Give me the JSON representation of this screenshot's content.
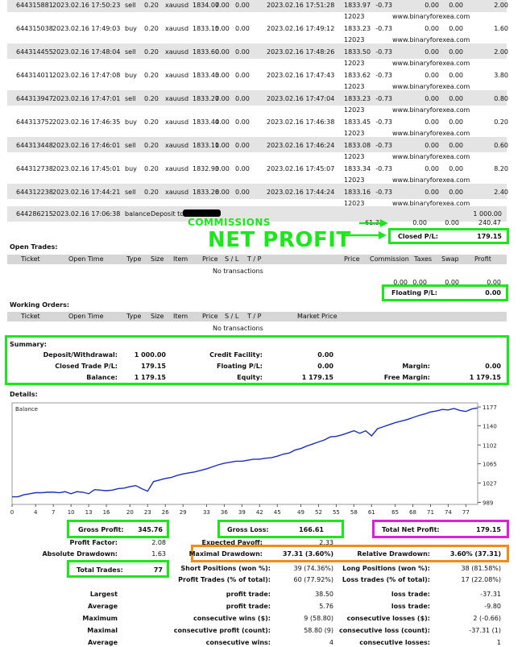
{
  "trades": [
    {
      "ticket": "644315881",
      "open_time": "2023.02.16 17:50:23",
      "type": "sell",
      "size": "0.20",
      "item": "xauusd",
      "price": "1834.07",
      "sl": "0.00",
      "tp": "0.00",
      "close_time": "2023.02.16 17:51:28",
      "close_price": "1833.97",
      "close_price2": "12023",
      "commission": "-0.73",
      "taxes": "0.00",
      "swap": "0.00",
      "profit": "2.00",
      "site": "www.binaryforexea.com"
    },
    {
      "ticket": "644315038",
      "open_time": "2023.02.16 17:49:03",
      "type": "buy",
      "size": "0.20",
      "item": "xauusd",
      "price": "1833.15",
      "sl": "0.00",
      "tp": "0.00",
      "close_time": "2023.02.16 17:49:12",
      "close_price": "1833.23",
      "close_price2": "12023",
      "commission": "-0.73",
      "taxes": "0.00",
      "swap": "0.00",
      "profit": "1.60",
      "site": "www.binaryforexea.com"
    },
    {
      "ticket": "644314455",
      "open_time": "2023.02.16 17:48:04",
      "type": "sell",
      "size": "0.20",
      "item": "xauusd",
      "price": "1833.60",
      "sl": "0.00",
      "tp": "0.00",
      "close_time": "2023.02.16 17:48:26",
      "close_price": "1833.50",
      "close_price2": "12023",
      "commission": "-0.73",
      "taxes": "0.00",
      "swap": "0.00",
      "profit": "2.00",
      "site": "www.binaryforexea.com"
    },
    {
      "ticket": "644314011",
      "open_time": "2023.02.16 17:47:08",
      "type": "buy",
      "size": "0.20",
      "item": "xauusd",
      "price": "1833.43",
      "sl": "0.00",
      "tp": "0.00",
      "close_time": "2023.02.16 17:47:43",
      "close_price": "1833.62",
      "close_price2": "12023",
      "commission": "-0.73",
      "taxes": "0.00",
      "swap": "0.00",
      "profit": "3.80",
      "site": "www.binaryforexea.com"
    },
    {
      "ticket": "644313947",
      "open_time": "2023.02.16 17:47:01",
      "type": "sell",
      "size": "0.20",
      "item": "xauusd",
      "price": "1833.27",
      "sl": "0.00",
      "tp": "0.00",
      "close_time": "2023.02.16 17:47:04",
      "close_price": "1833.23",
      "close_price2": "12023",
      "commission": "-0.73",
      "taxes": "0.00",
      "swap": "0.00",
      "profit": "0.80",
      "site": "www.binaryforexea.com"
    },
    {
      "ticket": "644313752",
      "open_time": "2023.02.16 17:46:35",
      "type": "buy",
      "size": "0.20",
      "item": "xauusd",
      "price": "1833.44",
      "sl": "0.00",
      "tp": "0.00",
      "close_time": "2023.02.16 17:46:38",
      "close_price": "1833.45",
      "close_price2": "12023",
      "commission": "-0.73",
      "taxes": "0.00",
      "swap": "0.00",
      "profit": "0.20",
      "site": "www.binaryforexea.com"
    },
    {
      "ticket": "644313448",
      "open_time": "2023.02.16 17:46:01",
      "type": "sell",
      "size": "0.20",
      "item": "xauusd",
      "price": "1833.11",
      "sl": "0.00",
      "tp": "0.00",
      "close_time": "2023.02.16 17:46:24",
      "close_price": "1833.08",
      "close_price2": "12023",
      "commission": "-0.73",
      "taxes": "0.00",
      "swap": "0.00",
      "profit": "0.60",
      "site": "www.binaryforexea.com"
    },
    {
      "ticket": "644312738",
      "open_time": "2023.02.16 17:45:01",
      "type": "buy",
      "size": "0.20",
      "item": "xauusd",
      "price": "1832.93",
      "sl": "0.00",
      "tp": "0.00",
      "close_time": "2023.02.16 17:45:07",
      "close_price": "1833.34",
      "close_price2": "12023",
      "commission": "-0.73",
      "taxes": "0.00",
      "swap": "0.00",
      "profit": "8.20",
      "site": "www.binaryforexea.com"
    },
    {
      "ticket": "644312238",
      "open_time": "2023.02.16 17:44:21",
      "type": "sell",
      "size": "0.20",
      "item": "xauusd",
      "price": "1833.28",
      "sl": "0.00",
      "tp": "0.00",
      "close_time": "2023.02.16 17:44:24",
      "close_price": "1833.16",
      "close_price2": "12023",
      "commission": "-0.73",
      "taxes": "0.00",
      "swap": "0.00",
      "profit": "2.40",
      "site": "www.binaryforexea.com"
    }
  ],
  "deposit_row": {
    "ticket": "644286215",
    "time": "2023.02.16 17:06:38",
    "type": "balance",
    "text": "Deposit to",
    "amount": "1 000.00"
  },
  "totals": {
    "commission": "-61.32",
    "taxes": "0.00",
    "swap": "0.00",
    "profit": "240.47"
  },
  "annotations": {
    "commissions": "COMMISSIONS",
    "net_profit": "NET PROFIT",
    "arrow_color": "#1be81b"
  },
  "closed_pl": {
    "label": "Closed P/L:",
    "value": "179.15"
  },
  "open_trades": {
    "title": "Open Trades:",
    "headers": [
      "Ticket",
      "Open Time",
      "Type",
      "Size",
      "Item",
      "Price",
      "S / L",
      "T / P",
      "Price",
      "Commission",
      "Taxes",
      "Swap",
      "Profit"
    ],
    "empty": "No transactions",
    "totals": [
      "0.00",
      "0.00",
      "0.00",
      "0.00"
    ],
    "floating_label": "Floating P/L:",
    "floating_value": "0.00"
  },
  "working_orders": {
    "title": "Working Orders:",
    "headers": [
      "Ticket",
      "Open Time",
      "Type",
      "Size",
      "Item",
      "Price",
      "S / L",
      "T / P",
      "Market Price"
    ],
    "empty": "No transactions"
  },
  "summary": {
    "title": "Summary:",
    "deposit_label": "Deposit/Withdrawal:",
    "deposit_value": "1 000.00",
    "credit_label": "Credit Facility:",
    "credit_value": "0.00",
    "closed_label": "Closed Trade P/L:",
    "closed_value": "179.15",
    "floating_label": "Floating P/L:",
    "floating_value": "0.00",
    "margin_label": "Margin:",
    "margin_value": "0.00",
    "balance_label": "Balance:",
    "balance_value": "1 179.15",
    "equity_label": "Equity:",
    "equity_value": "1 179.15",
    "free_margin_label": "Free Margin:",
    "free_margin_value": "1 179.15"
  },
  "details": {
    "title": "Details:"
  },
  "chart_data": {
    "type": "line",
    "title": "Balance",
    "x_ticks": [
      "0",
      "4",
      "7",
      "10",
      "13",
      "16",
      "20",
      "23",
      "26",
      "29",
      "33",
      "36",
      "39",
      "42",
      "45",
      "49",
      "52",
      "55",
      "58",
      "61",
      "65",
      "68",
      "71",
      "74",
      "77"
    ],
    "y_ticks": [
      "1177",
      "1140",
      "1102",
      "1065",
      "1027",
      "989"
    ],
    "ylim": [
      985,
      1185
    ],
    "xlim": [
      0,
      79
    ],
    "line_color": "#1c2fb8",
    "series": [
      {
        "values": [
          1000,
          1000,
          1004,
          1006,
          1008,
          1008,
          1009,
          1009,
          1008,
          1010,
          1006,
          1010,
          1009,
          1006,
          1014,
          1013,
          1012,
          1013,
          1016,
          1017,
          1020,
          1022,
          1016,
          1011,
          1030,
          1033,
          1036,
          1038,
          1042,
          1045,
          1047,
          1049,
          1052,
          1055,
          1059,
          1063,
          1066,
          1068,
          1070,
          1070,
          1072,
          1074,
          1074,
          1076,
          1077,
          1080,
          1084,
          1086,
          1092,
          1095,
          1100,
          1104,
          1108,
          1112,
          1118,
          1119,
          1122,
          1126,
          1130,
          1125,
          1130,
          1120,
          1134,
          1138,
          1142,
          1146,
          1149,
          1152,
          1156,
          1160,
          1163,
          1167,
          1169,
          1172,
          1171,
          1174,
          1170,
          1168,
          1173,
          1175
        ]
      }
    ]
  },
  "stats": {
    "gross_profit_label": "Gross Profit:",
    "gross_profit": "345.76",
    "gross_loss_label": "Gross Loss:",
    "gross_loss": "166.61",
    "total_net_label": "Total Net Profit:",
    "total_net": "179.15",
    "profit_factor_label": "Profit Factor:",
    "profit_factor": "2.08",
    "expected_payoff_label": "Expected Payoff:",
    "expected_payoff": "2.33",
    "abs_dd_label": "Absolute Drawdown:",
    "abs_dd": "1.63",
    "max_dd_label": "Maximal Drawdown:",
    "max_dd": "37.31 (3.60%)",
    "rel_dd_label": "Relative Drawdown:",
    "rel_dd": "3.60% (37.31)",
    "total_trades_label": "Total Trades:",
    "total_trades": "77",
    "short_label": "Short Positions (won %):",
    "short": "39 (74.36%)",
    "long_label": "Long Positions (won %):",
    "long": "38 (81.58%)",
    "profit_trades_label": "Profit Trades (% of total):",
    "profit_trades": "60 (77.92%)",
    "loss_trades_label": "Loss trades (% of total):",
    "loss_trades": "17 (22.08%)",
    "largest": "Largest",
    "largest_pt_label": "profit trade:",
    "largest_pt": "38.50",
    "largest_lt_label": "loss trade:",
    "largest_lt": "-37.31",
    "average": "Average",
    "avg_pt_label": "profit trade:",
    "avg_pt": "5.76",
    "avg_lt_label": "loss trade:",
    "avg_lt": "-9.80",
    "maximum": "Maximum",
    "max_cw_label": "consecutive wins ($):",
    "max_cw": "9 (58.80)",
    "max_cl_label": "consecutive losses ($):",
    "max_cl": "2 (-0.66)",
    "maximal": "Maximal",
    "max_cp_label": "consecutive profit (count):",
    "max_cp": "58.80 (9)",
    "max_clc_label": "consecutive loss (count):",
    "max_clc": "-37.31 (1)",
    "average2": "Average",
    "avg_cw_label": "consecutive wins:",
    "avg_cw": "4",
    "avg_cl_label": "consecutive losses:",
    "avg_cl": "1"
  }
}
